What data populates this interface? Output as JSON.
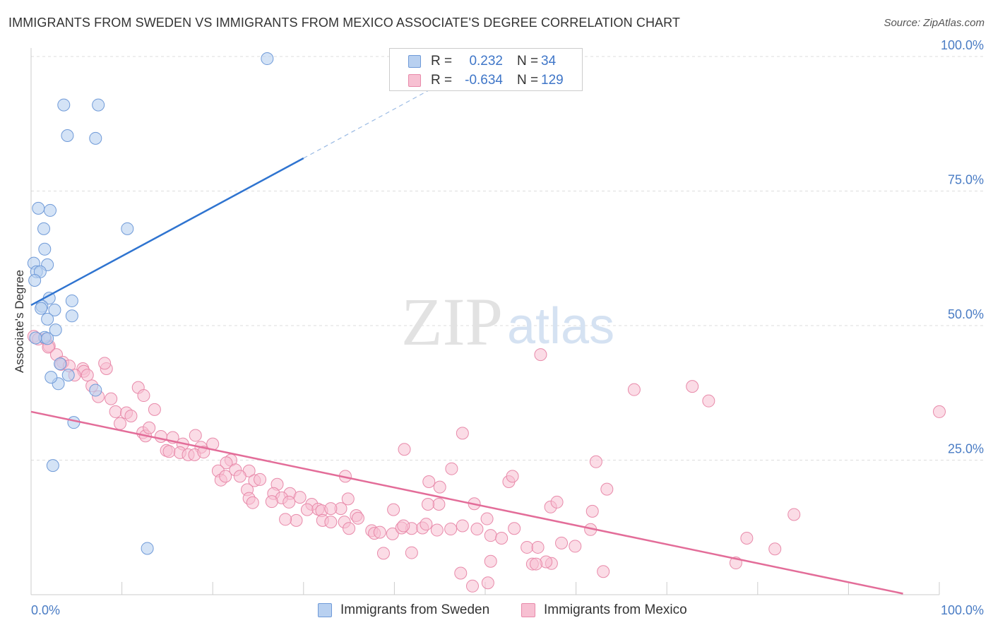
{
  "header": {
    "title": "IMMIGRANTS FROM SWEDEN VS IMMIGRANTS FROM MEXICO ASSOCIATE'S DEGREE CORRELATION CHART",
    "source": "Source: ZipAtlas.com"
  },
  "watermark": {
    "zip": "ZIP",
    "atlas": "atlas"
  },
  "legend": {
    "rows": [
      {
        "r_label": "R =",
        "r_value": "0.232",
        "n_label": "N =",
        "n_value": "34"
      },
      {
        "r_label": "R =",
        "r_value": "-0.634",
        "n_label": "N =",
        "n_value": "129"
      }
    ]
  },
  "bottom_legend": {
    "sweden": "Immigrants from Sweden",
    "mexico": "Immigrants from Mexico"
  },
  "colors": {
    "sweden_fill": "#b8d0f0",
    "sweden_stroke": "#6f9ad8",
    "sweden_line": "#2f74d0",
    "mexico_fill": "#f7c0d2",
    "mexico_stroke": "#e88aaa",
    "mexico_line": "#e36d99",
    "value_text": "#3f76c8",
    "grid": "#dddddd"
  },
  "chart_data": {
    "type": "scatter",
    "title": "IMMIGRANTS FROM SWEDEN VS IMMIGRANTS FROM MEXICO ASSOCIATE'S DEGREE CORRELATION CHART",
    "xlabel": "",
    "ylabel": "Associate's Degree",
    "xlim": [
      0,
      100
    ],
    "ylim": [
      0,
      100
    ],
    "x_tick_labels": [
      "0.0%",
      "100.0%"
    ],
    "y_ticks": [
      25,
      50,
      75,
      100
    ],
    "y_tick_labels": [
      "25.0%",
      "50.0%",
      "75.0%",
      "100.0%"
    ],
    "grid": true,
    "legend_position": "top-center",
    "series": [
      {
        "name": "Immigrants from Sweden",
        "R": 0.232,
        "N": 34,
        "trend": {
          "x": [
            0,
            30
          ],
          "y": [
            53.8,
            81.1
          ],
          "dashed_to": [
            50,
            99.4
          ]
        },
        "points": [
          [
            26.0,
            99.6
          ],
          [
            3.6,
            91.0
          ],
          [
            7.4,
            91.0
          ],
          [
            4.0,
            85.3
          ],
          [
            7.1,
            84.8
          ],
          [
            0.8,
            71.8
          ],
          [
            2.1,
            71.4
          ],
          [
            1.4,
            68.0
          ],
          [
            10.6,
            68.0
          ],
          [
            1.5,
            64.2
          ],
          [
            0.3,
            61.6
          ],
          [
            1.8,
            61.3
          ],
          [
            0.6,
            60.0
          ],
          [
            1.0,
            60.0
          ],
          [
            0.4,
            58.4
          ],
          [
            2.0,
            55.1
          ],
          [
            4.5,
            54.6
          ],
          [
            1.2,
            53.6
          ],
          [
            1.1,
            53.2
          ],
          [
            2.6,
            52.9
          ],
          [
            4.5,
            51.8
          ],
          [
            1.8,
            51.2
          ],
          [
            2.7,
            49.2
          ],
          [
            1.5,
            47.8
          ],
          [
            0.5,
            47.7
          ],
          [
            1.8,
            47.6
          ],
          [
            3.2,
            42.9
          ],
          [
            3.0,
            39.2
          ],
          [
            2.2,
            40.4
          ],
          [
            4.1,
            40.8
          ],
          [
            7.1,
            38.0
          ],
          [
            4.7,
            32.0
          ],
          [
            2.4,
            24.0
          ],
          [
            12.8,
            8.6
          ]
        ]
      },
      {
        "name": "Immigrants from Mexico",
        "R": -0.634,
        "N": 129,
        "trend": {
          "x": [
            0,
            96
          ],
          "y": [
            34.0,
            0.2
          ]
        },
        "points": [
          [
            0.3,
            48.0
          ],
          [
            0.8,
            47.5
          ],
          [
            1.6,
            47.5
          ],
          [
            2.0,
            46.2
          ],
          [
            1.9,
            46.0
          ],
          [
            2.8,
            44.6
          ],
          [
            3.5,
            43.2
          ],
          [
            3.3,
            42.8
          ],
          [
            4.2,
            42.5
          ],
          [
            5.7,
            42.0
          ],
          [
            5.8,
            41.5
          ],
          [
            8.3,
            42.0
          ],
          [
            8.1,
            43.0
          ],
          [
            6.2,
            40.8
          ],
          [
            4.8,
            40.8
          ],
          [
            6.7,
            38.8
          ],
          [
            11.8,
            38.5
          ],
          [
            7.4,
            36.8
          ],
          [
            8.8,
            36.4
          ],
          [
            12.4,
            37.0
          ],
          [
            9.3,
            34.0
          ],
          [
            13.6,
            34.4
          ],
          [
            10.5,
            33.8
          ],
          [
            11.0,
            33.2
          ],
          [
            9.8,
            31.8
          ],
          [
            12.3,
            30.1
          ],
          [
            12.6,
            29.5
          ],
          [
            14.3,
            29.4
          ],
          [
            15.6,
            29.2
          ],
          [
            18.1,
            29.6
          ],
          [
            16.7,
            28.0
          ],
          [
            18.7,
            27.4
          ],
          [
            14.9,
            26.8
          ],
          [
            15.2,
            26.6
          ],
          [
            16.4,
            26.4
          ],
          [
            17.3,
            26.0
          ],
          [
            18.0,
            26.0
          ],
          [
            20.0,
            28.0
          ],
          [
            22.0,
            25.0
          ],
          [
            21.5,
            24.5
          ],
          [
            20.6,
            23.0
          ],
          [
            22.5,
            23.2
          ],
          [
            24.0,
            23.0
          ],
          [
            20.9,
            21.3
          ],
          [
            21.4,
            22.0
          ],
          [
            23.0,
            22.0
          ],
          [
            24.6,
            21.2
          ],
          [
            27.1,
            20.5
          ],
          [
            25.2,
            21.4
          ],
          [
            23.8,
            19.5
          ],
          [
            24.0,
            17.9
          ],
          [
            24.4,
            17.1
          ],
          [
            28.5,
            18.8
          ],
          [
            26.7,
            18.8
          ],
          [
            27.6,
            18.0
          ],
          [
            26.5,
            17.3
          ],
          [
            29.6,
            18.1
          ],
          [
            28.4,
            17.2
          ],
          [
            30.9,
            16.8
          ],
          [
            30.4,
            15.8
          ],
          [
            31.6,
            15.9
          ],
          [
            32.0,
            15.6
          ],
          [
            34.1,
            16.0
          ],
          [
            29.2,
            13.8
          ],
          [
            32.1,
            13.8
          ],
          [
            33.0,
            13.5
          ],
          [
            35.8,
            14.7
          ],
          [
            34.5,
            13.5
          ],
          [
            35.0,
            12.3
          ],
          [
            36.0,
            14.2
          ],
          [
            37.5,
            11.9
          ],
          [
            37.8,
            11.4
          ],
          [
            38.4,
            11.6
          ],
          [
            39.8,
            11.3
          ],
          [
            41.9,
            12.3
          ],
          [
            40.8,
            12.4
          ],
          [
            41.0,
            12.8
          ],
          [
            43.1,
            12.4
          ],
          [
            44.7,
            12.0
          ],
          [
            43.5,
            13.1
          ],
          [
            44.9,
            16.8
          ],
          [
            46.2,
            12.2
          ],
          [
            47.5,
            12.8
          ],
          [
            49.1,
            12.2
          ],
          [
            50.2,
            14.1
          ],
          [
            50.6,
            11.0
          ],
          [
            51.8,
            10.5
          ],
          [
            39.9,
            15.8
          ],
          [
            34.9,
            17.8
          ],
          [
            38.8,
            7.7
          ],
          [
            41.9,
            7.8
          ],
          [
            43.7,
            16.8
          ],
          [
            48.8,
            16.9
          ],
          [
            46.3,
            23.4
          ],
          [
            34.6,
            22.0
          ],
          [
            41.1,
            27.0
          ],
          [
            43.8,
            21.0
          ],
          [
            47.5,
            30.0
          ],
          [
            52.6,
            21.0
          ],
          [
            53.2,
            12.3
          ],
          [
            54.6,
            8.8
          ],
          [
            55.8,
            8.8
          ],
          [
            55.2,
            5.7
          ],
          [
            57.3,
            5.8
          ],
          [
            56.7,
            6.1
          ],
          [
            57.2,
            16.3
          ],
          [
            57.9,
            17.2
          ],
          [
            59.9,
            9.0
          ],
          [
            58.4,
            9.6
          ],
          [
            61.8,
            15.5
          ],
          [
            62.2,
            24.7
          ],
          [
            61.6,
            12.1
          ],
          [
            63.4,
            19.6
          ],
          [
            66.4,
            38.1
          ],
          [
            56.1,
            44.6
          ],
          [
            72.8,
            38.7
          ],
          [
            74.6,
            36.0
          ],
          [
            78.8,
            10.5
          ],
          [
            84.0,
            14.9
          ],
          [
            81.9,
            8.5
          ],
          [
            77.6,
            5.9
          ],
          [
            63.0,
            4.3
          ],
          [
            50.6,
            6.2
          ],
          [
            47.3,
            4.0
          ],
          [
            48.6,
            1.6
          ],
          [
            50.3,
            2.2
          ],
          [
            55.6,
            5.7
          ],
          [
            100.0,
            34.0
          ],
          [
            53.0,
            22.0
          ],
          [
            45.0,
            20.0
          ],
          [
            33.0,
            16.0
          ],
          [
            28.0,
            14.0
          ],
          [
            19.0,
            26.5
          ],
          [
            13.0,
            31.0
          ]
        ]
      }
    ]
  }
}
